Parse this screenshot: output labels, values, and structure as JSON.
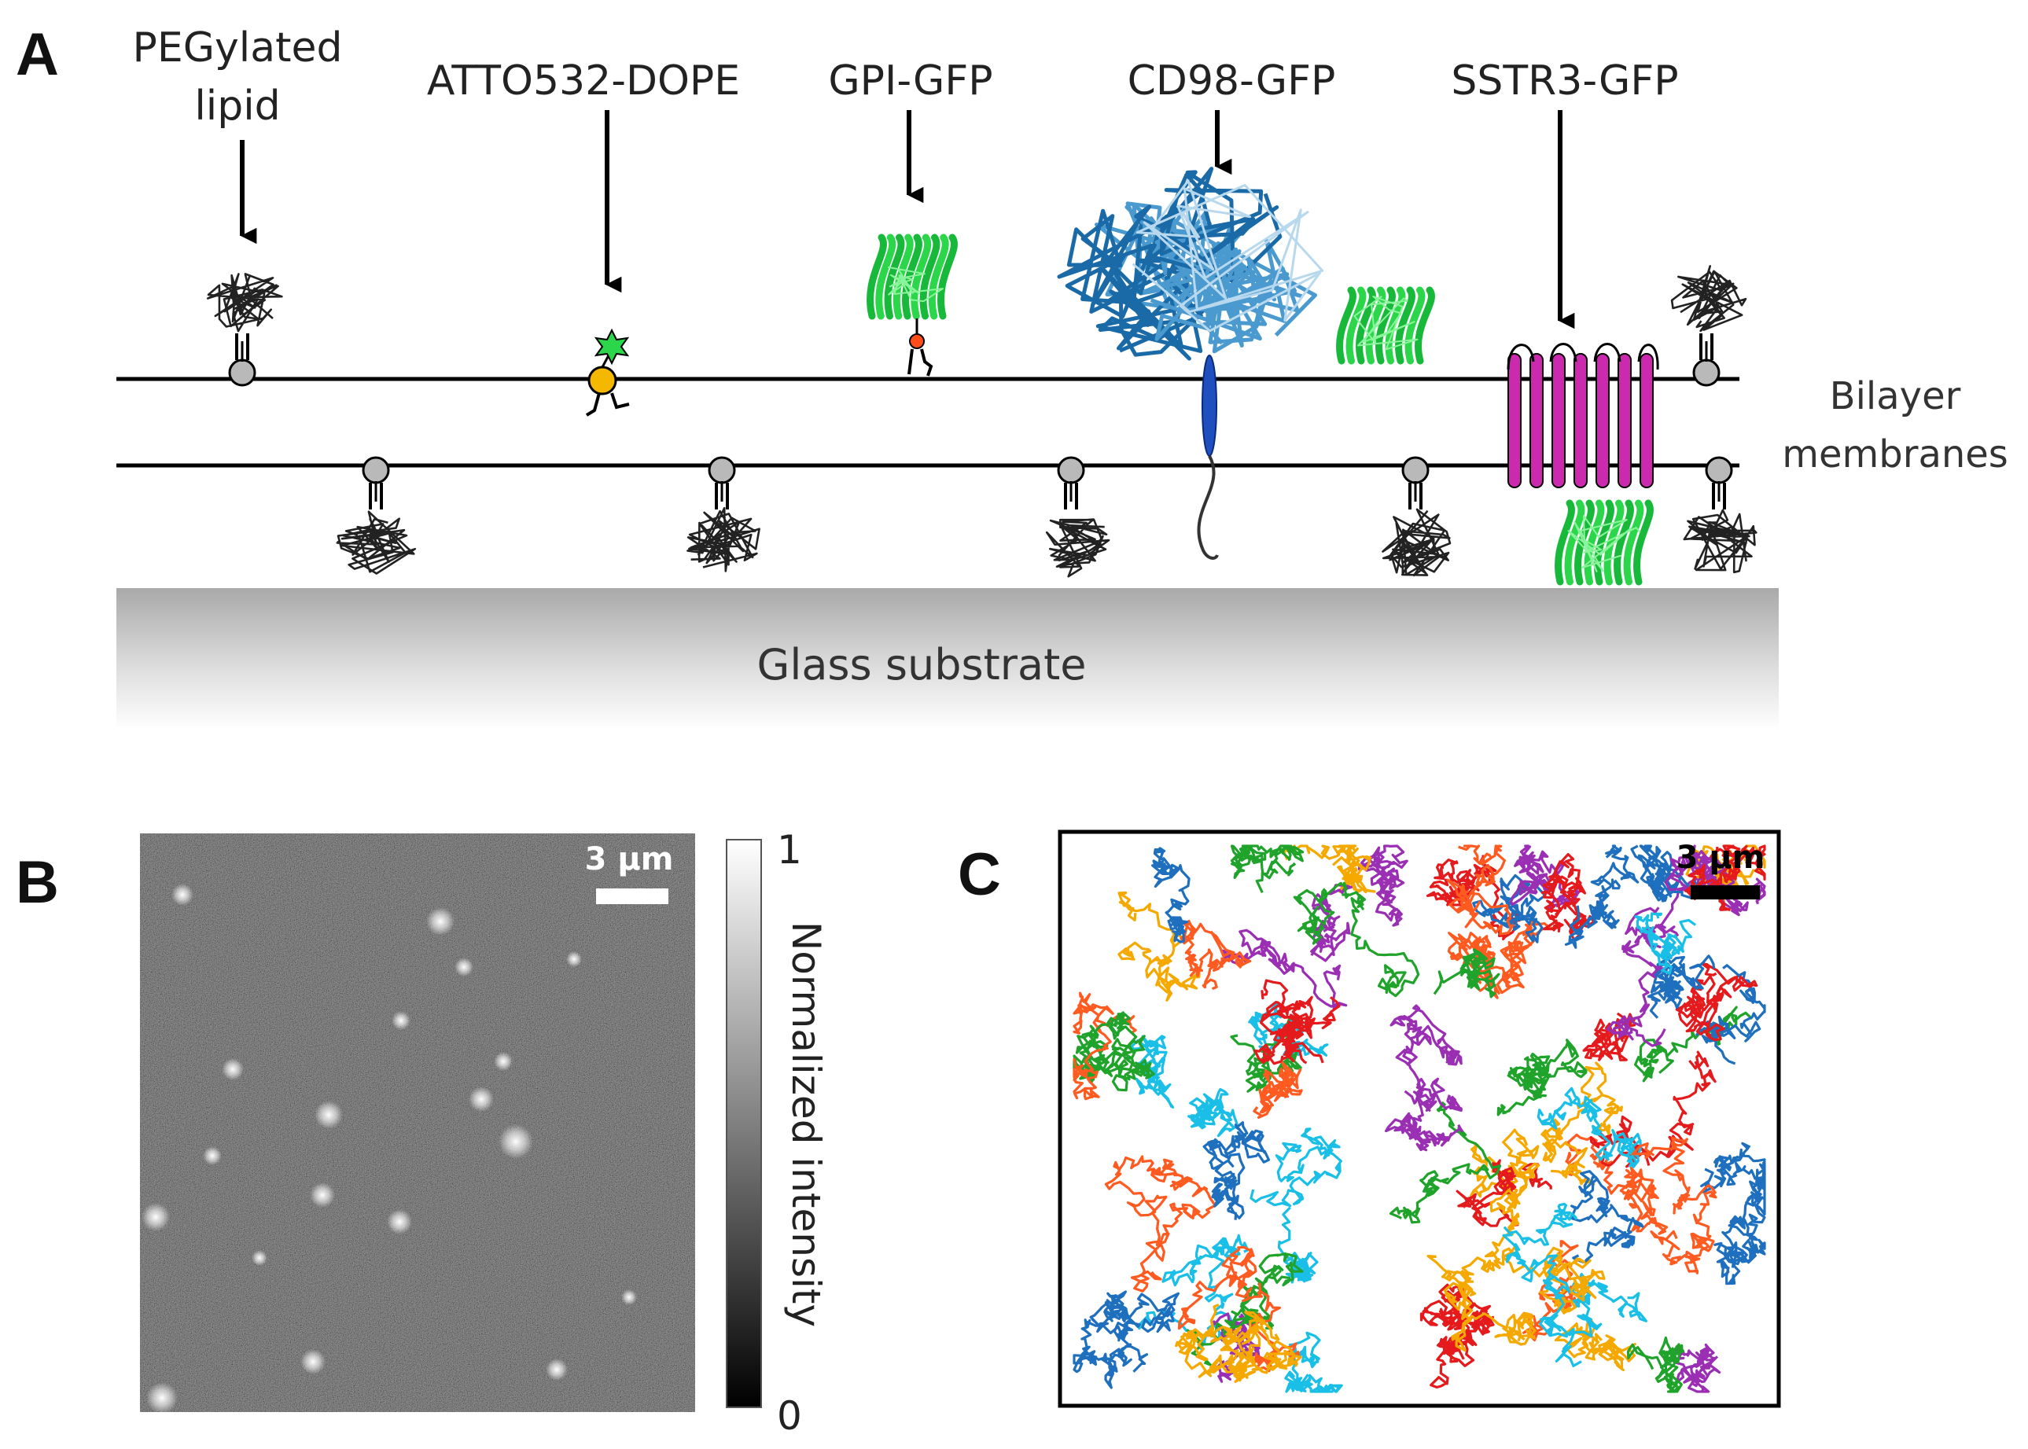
{
  "panels": {
    "a": {
      "letter": "A"
    },
    "b": {
      "letter": "B"
    },
    "c": {
      "letter": "C"
    }
  },
  "diagram": {
    "molecules": [
      {
        "line1": "PEGylated",
        "line2": "lipid"
      },
      {
        "line1": "ATTO532-DOPE"
      },
      {
        "line1": "GPI-GFP"
      },
      {
        "line1": "CD98-GFP"
      },
      {
        "line1": "SSTR3-GFP"
      }
    ],
    "bilayer_label": {
      "line1": "Bilayer",
      "line2": "membranes"
    },
    "substrate_label": "Glass substrate"
  },
  "microscopy": {
    "scalebar": "3 µm",
    "colorbar": {
      "label": "Normalized intensity",
      "max": "1",
      "min": "0"
    }
  },
  "trajectories": {
    "scalebar": "3 µm",
    "colors": [
      "#1f6fbf",
      "#e41a1c",
      "#ff5a1f",
      "#f5a800",
      "#9a2fb4",
      "#1fa32a",
      "#19bfe6"
    ]
  }
}
